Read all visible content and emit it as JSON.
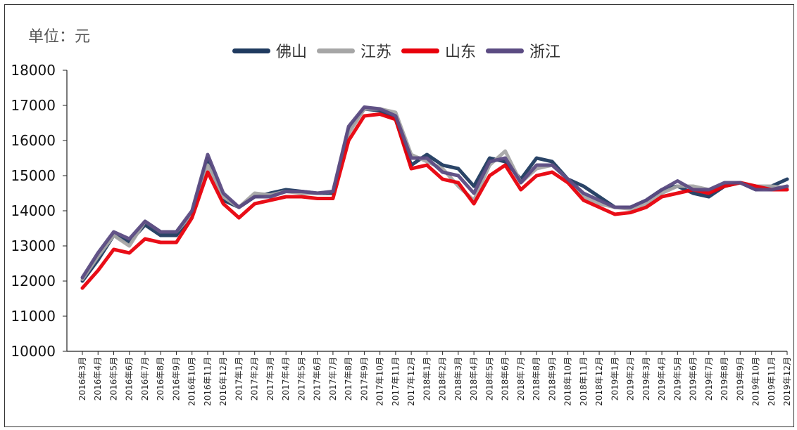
{
  "unit_label": "单位：元",
  "chart_data": {
    "type": "line",
    "ylim": [
      10000,
      18000
    ],
    "y_ticks": [
      "10000",
      "11000",
      "12000",
      "13000",
      "14000",
      "15000",
      "16000",
      "17000",
      "18000"
    ],
    "x": [
      "2016年3月",
      "2016年4月",
      "2016年5月",
      "2016年6月",
      "2016年7月",
      "2016年8月",
      "2016年9月",
      "2016年10月",
      "2016年11月",
      "2016年12月",
      "2017年1月",
      "2017年2月",
      "2017年3月",
      "2017年4月",
      "2017年5月",
      "2017年6月",
      "2017年7月",
      "2017年8月",
      "2017年9月",
      "2017年10月",
      "2017年11月",
      "2017年12月",
      "2018年1月",
      "2018年2月",
      "2018年3月",
      "2018年4月",
      "2018年5月",
      "2018年6月",
      "2018年7月",
      "2018年8月",
      "2018年9月",
      "2018年10月",
      "2018年11月",
      "2018年12月",
      "2019年1月",
      "2019年2月",
      "2019年3月",
      "2019年4月",
      "2019年5月",
      "2019年6月",
      "2019年7月",
      "2019年8月",
      "2019年9月",
      "2019年10月",
      "2019年11月",
      "2019年12月"
    ],
    "legend": "top-center",
    "grid": false,
    "series": [
      {
        "name": "佛山",
        "color": "#1f3a5f",
        "values": [
          12000,
          12600,
          13300,
          13100,
          13600,
          13300,
          13300,
          13900,
          15500,
          14300,
          14100,
          14400,
          14500,
          14600,
          14550,
          14500,
          14500,
          16300,
          16900,
          16850,
          16600,
          15300,
          15600,
          15300,
          15200,
          14700,
          15500,
          15400,
          14900,
          15500,
          15400,
          14900,
          14700,
          14400,
          14100,
          14100,
          14300,
          14600,
          14700,
          14500,
          14400,
          14700,
          14800,
          14600,
          14700,
          14900
        ]
      },
      {
        "name": "江苏",
        "color": "#a6a6a6",
        "values": [
          12050,
          12700,
          13300,
          13000,
          13700,
          13400,
          13400,
          13900,
          15300,
          14400,
          14100,
          14500,
          14450,
          14550,
          14500,
          14500,
          14550,
          16200,
          16900,
          16900,
          16800,
          15600,
          15400,
          15200,
          14700,
          14300,
          15300,
          15700,
          14800,
          15200,
          15300,
          14900,
          14400,
          14200,
          14100,
          14050,
          14200,
          14500,
          14700,
          14700,
          14600,
          14700,
          14800,
          14700,
          14700,
          14650
        ]
      },
      {
        "name": "山东",
        "color": "#e8000b",
        "values": [
          11800,
          12300,
          12900,
          12800,
          13200,
          13100,
          13100,
          13800,
          15100,
          14200,
          13800,
          14200,
          14300,
          14400,
          14400,
          14350,
          14350,
          16000,
          16700,
          16750,
          16600,
          15200,
          15300,
          14900,
          14800,
          14200,
          15000,
          15300,
          14600,
          15000,
          15100,
          14800,
          14300,
          14100,
          13900,
          13950,
          14100,
          14400,
          14500,
          14600,
          14500,
          14700,
          14800,
          14700,
          14600,
          14600
        ]
      },
      {
        "name": "浙江",
        "color": "#5b4b82",
        "values": [
          12100,
          12800,
          13400,
          13200,
          13700,
          13400,
          13400,
          14000,
          15600,
          14500,
          14100,
          14400,
          14400,
          14550,
          14550,
          14500,
          14550,
          16400,
          16950,
          16900,
          16700,
          15500,
          15500,
          15100,
          15000,
          14500,
          15400,
          15500,
          14800,
          15300,
          15300,
          14900,
          14500,
          14300,
          14100,
          14100,
          14300,
          14600,
          14850,
          14600,
          14600,
          14800,
          14800,
          14600,
          14600,
          14700
        ]
      }
    ]
  }
}
